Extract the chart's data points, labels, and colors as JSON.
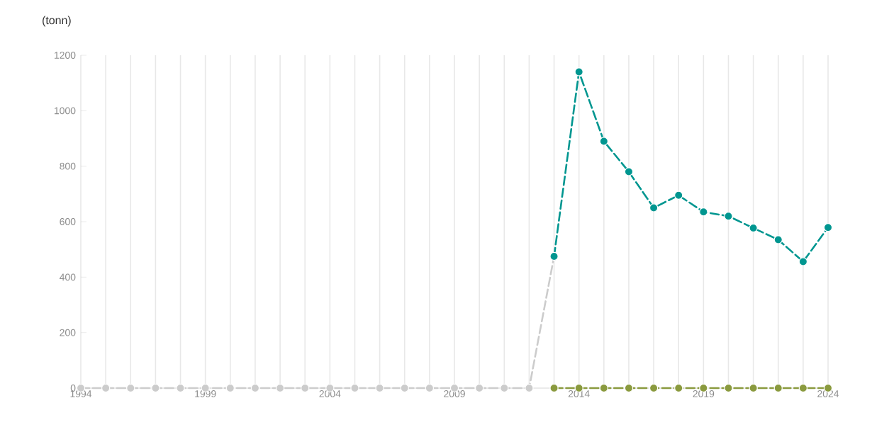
{
  "chart_data": {
    "type": "line",
    "ylabel": "(tonn)",
    "xlim": [
      1994,
      2024
    ],
    "xticks": [
      1994,
      {
        "value": 1995,
        "label": null
      },
      {
        "value": 1996,
        "label": null
      },
      {
        "value": 1997,
        "label": null
      },
      {
        "value": 1998,
        "label": null
      },
      1999,
      {
        "value": 2000,
        "label": null
      },
      {
        "value": 2001,
        "label": null
      },
      {
        "value": 2002,
        "label": null
      },
      {
        "value": 2003,
        "label": null
      },
      2004,
      {
        "value": 2005,
        "label": null
      },
      {
        "value": 2006,
        "label": null
      },
      {
        "value": 2007,
        "label": null
      },
      {
        "value": 2008,
        "label": null
      },
      2009,
      {
        "value": 2010,
        "label": null
      },
      {
        "value": 2011,
        "label": null
      },
      {
        "value": 2012,
        "label": null
      },
      {
        "value": 2013,
        "label": null
      },
      2014,
      {
        "value": 2015,
        "label": null
      },
      {
        "value": 2016,
        "label": null
      },
      {
        "value": 2017,
        "label": null
      },
      {
        "value": 2018,
        "label": null
      },
      2019,
      {
        "value": 2020,
        "label": null
      },
      {
        "value": 2021,
        "label": null
      },
      {
        "value": 2022,
        "label": null
      },
      {
        "value": 2023,
        "label": null
      },
      2024
    ],
    "ylim": [
      0,
      1200
    ],
    "yticks": [
      0,
      200,
      400,
      600,
      800,
      1000,
      1200
    ],
    "grid": "x",
    "marker": "circle",
    "line_style": "dashed",
    "series": [
      {
        "color": "#cccccc",
        "x": [
          1994,
          1995,
          1996,
          1997,
          1998,
          1999,
          2000,
          2001,
          2002,
          2003,
          2004,
          2005,
          2006,
          2007,
          2008,
          2009,
          2010,
          2011,
          2012,
          2013
        ],
        "values": [
          0,
          0,
          0,
          0,
          0,
          0,
          0,
          0,
          0,
          0,
          0,
          0,
          0,
          0,
          0,
          0,
          0,
          0,
          0,
          475
        ]
      },
      {
        "color": "#8a9a3e",
        "x": [
          2013,
          2014,
          2015,
          2016,
          2017,
          2018,
          2019,
          2020,
          2021,
          2022,
          2023,
          2024
        ],
        "values": [
          0,
          0,
          0,
          0,
          0,
          0,
          0,
          0,
          0,
          0,
          0,
          0
        ]
      },
      {
        "color": "#009690",
        "x": [
          2013,
          2014,
          2015,
          2016,
          2017,
          2018,
          2019,
          2020,
          2021,
          2022,
          2023,
          2024
        ],
        "values": [
          475,
          1140,
          890,
          780,
          650,
          695,
          635,
          620,
          577,
          535,
          456,
          579
        ]
      }
    ]
  }
}
